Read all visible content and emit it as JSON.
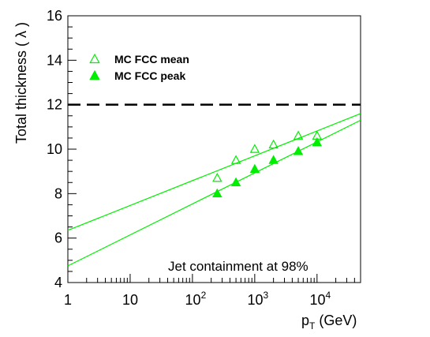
{
  "chart_data": {
    "type": "scatter",
    "xscale": "log",
    "xlim": [
      1,
      50000
    ],
    "ylim": [
      4,
      16
    ],
    "xlabel": "p_T (GeV)",
    "xlabel_parts": {
      "main": "p",
      "sub": "T",
      "rest": " (GeV)"
    },
    "ylabel": "Total thickness ( λ )",
    "x_ticks": [
      {
        "value": 1,
        "label": "1",
        "sup": ""
      },
      {
        "value": 10,
        "label": "10",
        "sup": ""
      },
      {
        "value": 100,
        "label": "10",
        "sup": "2"
      },
      {
        "value": 1000,
        "label": "10",
        "sup": "3"
      },
      {
        "value": 10000,
        "label": "10",
        "sup": "4"
      }
    ],
    "y_ticks": [
      4,
      6,
      8,
      10,
      12,
      14,
      16
    ],
    "series": [
      {
        "name": "MC FCC mean",
        "marker": "open-triangle",
        "color": "#00ee00",
        "points": [
          {
            "x": 250,
            "y": 8.7
          },
          {
            "x": 500,
            "y": 9.5
          },
          {
            "x": 1000,
            "y": 10.0
          },
          {
            "x": 2000,
            "y": 10.2
          },
          {
            "x": 5000,
            "y": 10.6
          },
          {
            "x": 10000,
            "y": 10.6
          }
        ],
        "fit": {
          "x0": 1,
          "y0": 6.35,
          "x1": 50000,
          "y1": 11.6
        }
      },
      {
        "name": "MC FCC peak",
        "marker": "filled-triangle",
        "color": "#00ee00",
        "points": [
          {
            "x": 250,
            "y": 8.0
          },
          {
            "x": 500,
            "y": 8.5
          },
          {
            "x": 1000,
            "y": 9.1
          },
          {
            "x": 2000,
            "y": 9.5
          },
          {
            "x": 5000,
            "y": 9.9
          },
          {
            "x": 10000,
            "y": 10.3
          }
        ],
        "fit": {
          "x0": 1,
          "y0": 4.75,
          "x1": 50000,
          "y1": 11.3
        }
      }
    ],
    "reference_line": {
      "y": 12,
      "style": "dashed",
      "color": "#000000"
    },
    "legend": {
      "position": "top-left"
    },
    "annotation": "Jet containment at 98%",
    "grid": false
  }
}
